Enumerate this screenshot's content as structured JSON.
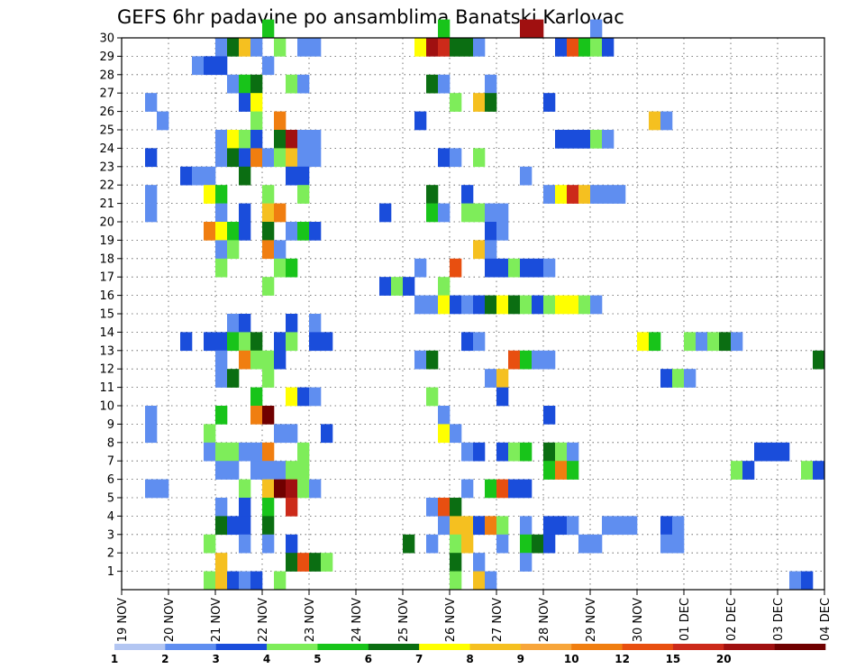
{
  "chart_data": {
    "type": "heatmap",
    "title": "GEFS 6hr padavine po ansamblima Banatski Karlovac",
    "x_tick_labels": [
      "19 NOV",
      "20 NOV",
      "21 NOV",
      "22 NOV",
      "23 NOV",
      "24 NOV",
      "25 NOV",
      "26 NOV",
      "27 NOV",
      "28 NOV",
      "29 NOV",
      "30 NOV",
      "01 DEC",
      "02 DEC",
      "03 DEC",
      "04 DEC"
    ],
    "y_tick_labels": [
      "1",
      "2",
      "3",
      "4",
      "5",
      "6",
      "7",
      "8",
      "9",
      "10",
      "11",
      "12",
      "13",
      "14",
      "15",
      "16",
      "17",
      "18",
      "19",
      "20",
      "21",
      "22",
      "23",
      "24",
      "25",
      "26",
      "27",
      "28",
      "29",
      "30"
    ],
    "steps_per_day": 4,
    "x_range_steps": [
      0,
      60
    ],
    "y_range_members": [
      0,
      30
    ],
    "grid": "dotted",
    "legend": {
      "placement": "bottom",
      "levels": [
        "1",
        "2",
        "3",
        "4",
        "5",
        "6",
        "7",
        "8",
        "9",
        "10",
        "12",
        "15",
        "20"
      ],
      "colors": [
        "#b3c6f2",
        "#5f8ef0",
        "#1a4ddb",
        "#7eed5a",
        "#18c41a",
        "#0b6e12",
        "#ffff00",
        "#f5c020",
        "#f7a53a",
        "#f07e10",
        "#e84f10",
        "#cc2a1a",
        "#a01010",
        "#700000"
      ]
    },
    "cells": [
      [
        30,
        12,
        4
      ],
      [
        30,
        27,
        4
      ],
      [
        30,
        34,
        12
      ],
      [
        30,
        35,
        12
      ],
      [
        30,
        40,
        1
      ],
      [
        29,
        8,
        1
      ],
      [
        29,
        9,
        5
      ],
      [
        29,
        10,
        7
      ],
      [
        29,
        11,
        1
      ],
      [
        29,
        13,
        3
      ],
      [
        29,
        15,
        1
      ],
      [
        29,
        16,
        1
      ],
      [
        29,
        25,
        6
      ],
      [
        29,
        26,
        12
      ],
      [
        29,
        27,
        11
      ],
      [
        29,
        28,
        5
      ],
      [
        29,
        29,
        5
      ],
      [
        29,
        30,
        1
      ],
      [
        29,
        37,
        2
      ],
      [
        29,
        38,
        10
      ],
      [
        29,
        39,
        4
      ],
      [
        29,
        40,
        3
      ],
      [
        29,
        41,
        2
      ],
      [
        28,
        6,
        1
      ],
      [
        28,
        7,
        2
      ],
      [
        28,
        8,
        2
      ],
      [
        28,
        12,
        1
      ],
      [
        27,
        9,
        1
      ],
      [
        27,
        10,
        4
      ],
      [
        27,
        11,
        5
      ],
      [
        27,
        14,
        3
      ],
      [
        27,
        15,
        1
      ],
      [
        27,
        26,
        5
      ],
      [
        27,
        27,
        1
      ],
      [
        27,
        31,
        1
      ],
      [
        26,
        2,
        1
      ],
      [
        26,
        10,
        2
      ],
      [
        26,
        11,
        6
      ],
      [
        26,
        28,
        3
      ],
      [
        26,
        30,
        7
      ],
      [
        26,
        31,
        5
      ],
      [
        26,
        36,
        2
      ],
      [
        25,
        3,
        1
      ],
      [
        25,
        11,
        3
      ],
      [
        25,
        13,
        9
      ],
      [
        25,
        25,
        2
      ],
      [
        25,
        45,
        7
      ],
      [
        25,
        46,
        1
      ],
      [
        24,
        8,
        1
      ],
      [
        24,
        9,
        6
      ],
      [
        24,
        10,
        3
      ],
      [
        24,
        11,
        2
      ],
      [
        24,
        13,
        5
      ],
      [
        24,
        14,
        12
      ],
      [
        24,
        15,
        1
      ],
      [
        24,
        16,
        1
      ],
      [
        24,
        37,
        2
      ],
      [
        24,
        38,
        2
      ],
      [
        24,
        39,
        2
      ],
      [
        24,
        40,
        3
      ],
      [
        24,
        41,
        1
      ],
      [
        23,
        2,
        2
      ],
      [
        23,
        8,
        1
      ],
      [
        23,
        9,
        5
      ],
      [
        23,
        10,
        2
      ],
      [
        23,
        11,
        9
      ],
      [
        23,
        12,
        1
      ],
      [
        23,
        13,
        3
      ],
      [
        23,
        14,
        7
      ],
      [
        23,
        15,
        1
      ],
      [
        23,
        16,
        1
      ],
      [
        23,
        27,
        2
      ],
      [
        23,
        28,
        1
      ],
      [
        23,
        30,
        3
      ],
      [
        22,
        5,
        2
      ],
      [
        22,
        6,
        1
      ],
      [
        22,
        7,
        1
      ],
      [
        22,
        10,
        5
      ],
      [
        22,
        14,
        2
      ],
      [
        22,
        15,
        2
      ],
      [
        22,
        34,
        1
      ],
      [
        21,
        2,
        1
      ],
      [
        21,
        7,
        6
      ],
      [
        21,
        8,
        4
      ],
      [
        21,
        12,
        3
      ],
      [
        21,
        15,
        3
      ],
      [
        21,
        26,
        5
      ],
      [
        21,
        29,
        2
      ],
      [
        21,
        36,
        1
      ],
      [
        21,
        37,
        6
      ],
      [
        21,
        38,
        11
      ],
      [
        21,
        39,
        7
      ],
      [
        21,
        40,
        1
      ],
      [
        21,
        41,
        1
      ],
      [
        21,
        42,
        1
      ],
      [
        20,
        2,
        1
      ],
      [
        20,
        8,
        1
      ],
      [
        20,
        10,
        2
      ],
      [
        20,
        12,
        7
      ],
      [
        20,
        13,
        9
      ],
      [
        20,
        22,
        2
      ],
      [
        20,
        26,
        4
      ],
      [
        20,
        27,
        1
      ],
      [
        20,
        29,
        3
      ],
      [
        20,
        30,
        3
      ],
      [
        20,
        31,
        1
      ],
      [
        20,
        32,
        1
      ],
      [
        19,
        7,
        9
      ],
      [
        19,
        8,
        6
      ],
      [
        19,
        9,
        4
      ],
      [
        19,
        10,
        2
      ],
      [
        19,
        12,
        5
      ],
      [
        19,
        14,
        1
      ],
      [
        19,
        15,
        4
      ],
      [
        19,
        16,
        2
      ],
      [
        19,
        31,
        2
      ],
      [
        19,
        32,
        1
      ],
      [
        18,
        8,
        1
      ],
      [
        18,
        9,
        3
      ],
      [
        18,
        12,
        9
      ],
      [
        18,
        13,
        1
      ],
      [
        18,
        30,
        7
      ],
      [
        18,
        31,
        1
      ],
      [
        17,
        8,
        3
      ],
      [
        17,
        13,
        3
      ],
      [
        17,
        14,
        4
      ],
      [
        17,
        25,
        1
      ],
      [
        17,
        28,
        10
      ],
      [
        17,
        31,
        2
      ],
      [
        17,
        32,
        2
      ],
      [
        17,
        33,
        3
      ],
      [
        17,
        34,
        2
      ],
      [
        17,
        35,
        2
      ],
      [
        17,
        36,
        1
      ],
      [
        16,
        12,
        3
      ],
      [
        16,
        22,
        2
      ],
      [
        16,
        23,
        3
      ],
      [
        16,
        24,
        2
      ],
      [
        16,
        27,
        3
      ],
      [
        15,
        25,
        1
      ],
      [
        15,
        26,
        1
      ],
      [
        15,
        27,
        6
      ],
      [
        15,
        28,
        2
      ],
      [
        15,
        29,
        1
      ],
      [
        15,
        30,
        2
      ],
      [
        15,
        31,
        5
      ],
      [
        15,
        32,
        6
      ],
      [
        15,
        33,
        5
      ],
      [
        15,
        34,
        3
      ],
      [
        15,
        35,
        2
      ],
      [
        15,
        36,
        3
      ],
      [
        15,
        37,
        6
      ],
      [
        15,
        38,
        6
      ],
      [
        15,
        39,
        3
      ],
      [
        15,
        40,
        1
      ],
      [
        14,
        9,
        1
      ],
      [
        14,
        10,
        2
      ],
      [
        14,
        14,
        2
      ],
      [
        14,
        16,
        1
      ],
      [
        13,
        5,
        2
      ],
      [
        13,
        7,
        2
      ],
      [
        13,
        8,
        2
      ],
      [
        13,
        9,
        4
      ],
      [
        13,
        10,
        3
      ],
      [
        13,
        11,
        5
      ],
      [
        13,
        13,
        2
      ],
      [
        13,
        14,
        3
      ],
      [
        13,
        16,
        2
      ],
      [
        13,
        17,
        2
      ],
      [
        13,
        29,
        2
      ],
      [
        13,
        30,
        1
      ],
      [
        13,
        44,
        6
      ],
      [
        13,
        45,
        4
      ],
      [
        13,
        48,
        3
      ],
      [
        13,
        49,
        1
      ],
      [
        13,
        50,
        3
      ],
      [
        13,
        51,
        5
      ],
      [
        13,
        52,
        1
      ],
      [
        12,
        8,
        1
      ],
      [
        12,
        10,
        9
      ],
      [
        12,
        11,
        3
      ],
      [
        12,
        12,
        3
      ],
      [
        12,
        13,
        2
      ],
      [
        12,
        25,
        1
      ],
      [
        12,
        26,
        5
      ],
      [
        12,
        33,
        10
      ],
      [
        12,
        34,
        4
      ],
      [
        12,
        35,
        1
      ],
      [
        12,
        36,
        1
      ],
      [
        12,
        59,
        5
      ],
      [
        11,
        8,
        1
      ],
      [
        11,
        9,
        5
      ],
      [
        11,
        12,
        3
      ],
      [
        11,
        31,
        1
      ],
      [
        11,
        32,
        7
      ],
      [
        11,
        46,
        2
      ],
      [
        11,
        47,
        3
      ],
      [
        11,
        48,
        1
      ],
      [
        10,
        11,
        4
      ],
      [
        10,
        14,
        6
      ],
      [
        10,
        15,
        2
      ],
      [
        10,
        16,
        1
      ],
      [
        10,
        26,
        3
      ],
      [
        10,
        32,
        2
      ],
      [
        9,
        2,
        1
      ],
      [
        9,
        8,
        4
      ],
      [
        9,
        11,
        9
      ],
      [
        9,
        12,
        13
      ],
      [
        9,
        27,
        1
      ],
      [
        9,
        36,
        2
      ],
      [
        8,
        2,
        1
      ],
      [
        8,
        7,
        3
      ],
      [
        8,
        13,
        1
      ],
      [
        8,
        14,
        1
      ],
      [
        8,
        17,
        2
      ],
      [
        8,
        27,
        6
      ],
      [
        8,
        28,
        1
      ],
      [
        7,
        7,
        1
      ],
      [
        7,
        8,
        3
      ],
      [
        7,
        9,
        3
      ],
      [
        7,
        10,
        1
      ],
      [
        7,
        11,
        1
      ],
      [
        7,
        12,
        9
      ],
      [
        7,
        15,
        3
      ],
      [
        7,
        29,
        1
      ],
      [
        7,
        30,
        2
      ],
      [
        7,
        32,
        2
      ],
      [
        7,
        33,
        3
      ],
      [
        7,
        34,
        4
      ],
      [
        7,
        36,
        5
      ],
      [
        7,
        37,
        3
      ],
      [
        7,
        38,
        1
      ],
      [
        7,
        54,
        2
      ],
      [
        7,
        55,
        2
      ],
      [
        7,
        56,
        2
      ],
      [
        6,
        8,
        1
      ],
      [
        6,
        9,
        1
      ],
      [
        6,
        11,
        1
      ],
      [
        6,
        12,
        1
      ],
      [
        6,
        13,
        1
      ],
      [
        6,
        14,
        3
      ],
      [
        6,
        15,
        3
      ],
      [
        6,
        36,
        4
      ],
      [
        6,
        37,
        9
      ],
      [
        6,
        38,
        4
      ],
      [
        6,
        52,
        3
      ],
      [
        6,
        53,
        2
      ],
      [
        6,
        58,
        3
      ],
      [
        6,
        59,
        2
      ],
      [
        5,
        2,
        1
      ],
      [
        5,
        3,
        1
      ],
      [
        5,
        10,
        3
      ],
      [
        5,
        12,
        7
      ],
      [
        5,
        13,
        13
      ],
      [
        5,
        14,
        12
      ],
      [
        5,
        15,
        3
      ],
      [
        5,
        16,
        1
      ],
      [
        5,
        29,
        1
      ],
      [
        5,
        31,
        4
      ],
      [
        5,
        32,
        10
      ],
      [
        5,
        33,
        2
      ],
      [
        5,
        34,
        2
      ],
      [
        4,
        8,
        1
      ],
      [
        4,
        10,
        2
      ],
      [
        4,
        12,
        4
      ],
      [
        4,
        14,
        11
      ],
      [
        4,
        26,
        1
      ],
      [
        4,
        27,
        10
      ],
      [
        4,
        28,
        5
      ],
      [
        3,
        8,
        5
      ],
      [
        3,
        9,
        2
      ],
      [
        3,
        10,
        2
      ],
      [
        3,
        12,
        5
      ],
      [
        3,
        27,
        1
      ],
      [
        3,
        28,
        7
      ],
      [
        3,
        29,
        7
      ],
      [
        3,
        30,
        2
      ],
      [
        3,
        31,
        9
      ],
      [
        3,
        32,
        3
      ],
      [
        3,
        34,
        1
      ],
      [
        3,
        36,
        2
      ],
      [
        3,
        37,
        2
      ],
      [
        3,
        38,
        1
      ],
      [
        3,
        41,
        1
      ],
      [
        3,
        42,
        1
      ],
      [
        3,
        43,
        1
      ],
      [
        3,
        46,
        2
      ],
      [
        3,
        47,
        1
      ],
      [
        2,
        7,
        3
      ],
      [
        2,
        10,
        1
      ],
      [
        2,
        12,
        1
      ],
      [
        2,
        14,
        2
      ],
      [
        2,
        24,
        5
      ],
      [
        2,
        26,
        1
      ],
      [
        2,
        28,
        3
      ],
      [
        2,
        29,
        7
      ],
      [
        2,
        32,
        1
      ],
      [
        2,
        34,
        4
      ],
      [
        2,
        35,
        5
      ],
      [
        2,
        36,
        2
      ],
      [
        2,
        39,
        1
      ],
      [
        2,
        40,
        1
      ],
      [
        2,
        46,
        1
      ],
      [
        2,
        47,
        1
      ],
      [
        1,
        8,
        7
      ],
      [
        1,
        14,
        5
      ],
      [
        1,
        15,
        10
      ],
      [
        1,
        16,
        5
      ],
      [
        1,
        17,
        3
      ],
      [
        1,
        28,
        5
      ],
      [
        1,
        30,
        1
      ],
      [
        1,
        34,
        1
      ],
      [
        0,
        7,
        3
      ],
      [
        0,
        8,
        7
      ],
      [
        0,
        9,
        2
      ],
      [
        0,
        10,
        1
      ],
      [
        0,
        11,
        2
      ],
      [
        0,
        13,
        3
      ],
      [
        0,
        28,
        3
      ],
      [
        0,
        30,
        7
      ],
      [
        0,
        31,
        1
      ],
      [
        0,
        57,
        1
      ],
      [
        0,
        58,
        2
      ]
    ]
  }
}
